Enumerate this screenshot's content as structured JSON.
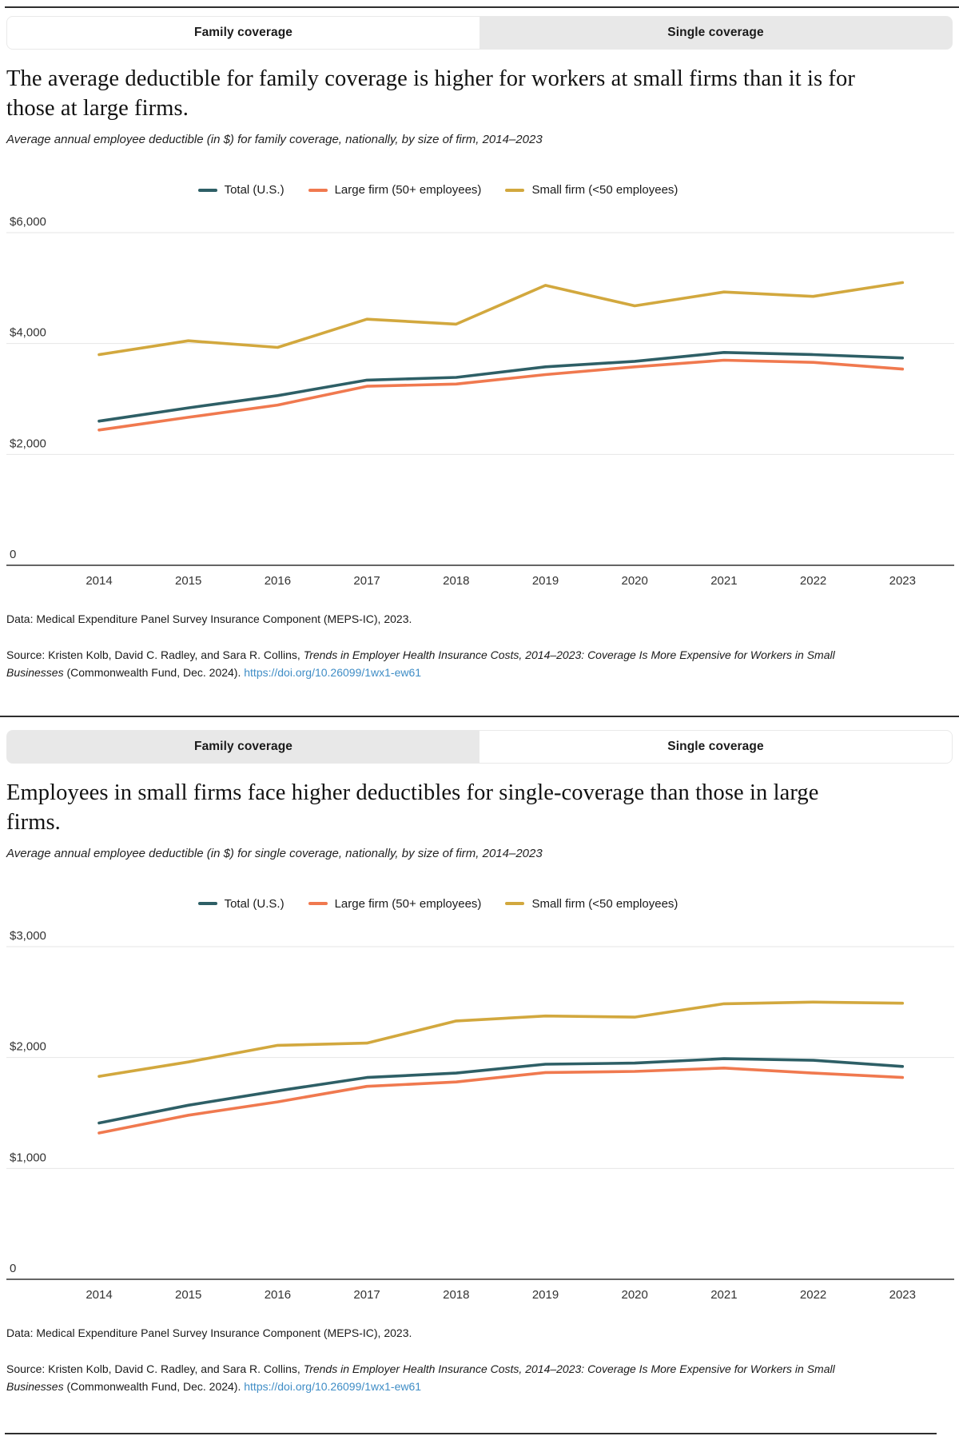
{
  "colors": {
    "teal": "#2e5f66",
    "orange": "#f0794f",
    "gold": "#d2a83e",
    "link": "#3f8dc6",
    "gridline": "#e6e6e6",
    "axis": "#4f4f4f",
    "tab_inactive_bg": "#e8e8e8",
    "tab_active_bg": "#ffffff"
  },
  "panels": [
    {
      "tabs": [
        {
          "label": "Family coverage"
        },
        {
          "label": "Single coverage"
        }
      ],
      "active_tab": 0,
      "title": "The average deductible for family coverage is higher for workers at small firms than it is for those at large firms.",
      "subtitle": "Average annual employee deductible (in $) for family coverage, nationally, by size of firm, 2014–2023",
      "data_note": "Data: Medical Expenditure Panel Survey Insurance Component (MEPS-IC), 2023.",
      "source": {
        "prefix": "Source: Kristen Kolb, David C. Radley, and Sara R. Collins, ",
        "report_title": "Trends in Employer Health Insurance Costs, 2014–2023: Coverage Is More Expensive for Workers in Small Businesses",
        "suffix": " (Commonwealth Fund, Dec. 2024). ",
        "link": "https://doi.org/10.26099/1wx1-ew61"
      }
    },
    {
      "tabs": [
        {
          "label": "Family coverage"
        },
        {
          "label": "Single coverage"
        }
      ],
      "active_tab": 1,
      "title": "Employees in small firms face higher deductibles for single-coverage than those in large firms.",
      "subtitle": "Average annual employee deductible (in $) for single coverage, nationally, by size of firm, 2014–2023",
      "data_note": "Data: Medical Expenditure Panel Survey Insurance Component (MEPS-IC), 2023.",
      "source": {
        "prefix": "Source: Kristen Kolb, David C. Radley, and Sara R. Collins, ",
        "report_title": "Trends in Employer Health Insurance Costs, 2014–2023: Coverage Is More Expensive for Workers in Small Businesses",
        "suffix": " (Commonwealth Fund, Dec. 2024). ",
        "link": "https://doi.org/10.26099/1wx1-ew61"
      }
    }
  ],
  "chart_data": [
    {
      "type": "line",
      "title": "Average annual employee deductible (in $) for family coverage, nationally, by size of firm, 2014–2023",
      "x": [
        "2014",
        "2015",
        "2016",
        "2017",
        "2018",
        "2019",
        "2020",
        "2021",
        "2022",
        "2023"
      ],
      "series": [
        {
          "name": "Total (U.S.)",
          "color": "#2e5f66",
          "values": [
            2600,
            2840,
            3060,
            3340,
            3390,
            3580,
            3680,
            3840,
            3800,
            3740
          ]
        },
        {
          "name": "Large firm (50+ employees)",
          "color": "#f0794f",
          "values": [
            2440,
            2670,
            2890,
            3230,
            3270,
            3440,
            3580,
            3700,
            3660,
            3540
          ]
        },
        {
          "name": "Small firm (<50 employees)",
          "color": "#d2a83e",
          "values": [
            3800,
            4050,
            3930,
            4440,
            4350,
            5050,
            4680,
            4930,
            4850,
            5100
          ]
        }
      ],
      "ylim": [
        0,
        6000
      ],
      "yticks": [
        {
          "value": 6000,
          "label": "$6,000"
        },
        {
          "value": 4000,
          "label": "$4,000"
        },
        {
          "value": 2000,
          "label": "$2,000"
        },
        {
          "value": 0,
          "label": "0"
        }
      ],
      "grid": true,
      "legend_position": "top"
    },
    {
      "type": "line",
      "title": "Average annual employee deductible (in $) for single coverage, nationally, by size of firm, 2014–2023",
      "x": [
        "2014",
        "2015",
        "2016",
        "2017",
        "2018",
        "2019",
        "2020",
        "2021",
        "2022",
        "2023"
      ],
      "series": [
        {
          "name": "Total (U.S.)",
          "color": "#2e5f66",
          "values": [
            1410,
            1570,
            1700,
            1820,
            1860,
            1940,
            1950,
            1990,
            1975,
            1920
          ]
        },
        {
          "name": "Large firm (50+ employees)",
          "color": "#f0794f",
          "values": [
            1320,
            1480,
            1600,
            1740,
            1780,
            1865,
            1875,
            1905,
            1860,
            1820
          ]
        },
        {
          "name": "Small firm (<50 employees)",
          "color": "#d2a83e",
          "values": [
            1830,
            1960,
            2110,
            2130,
            2330,
            2375,
            2365,
            2485,
            2500,
            2490
          ]
        }
      ],
      "ylim": [
        0,
        3000
      ],
      "yticks": [
        {
          "value": 3000,
          "label": "$3,000"
        },
        {
          "value": 2000,
          "label": "$2,000"
        },
        {
          "value": 1000,
          "label": "$1,000"
        },
        {
          "value": 0,
          "label": "0"
        }
      ],
      "grid": true,
      "legend_position": "top"
    }
  ]
}
